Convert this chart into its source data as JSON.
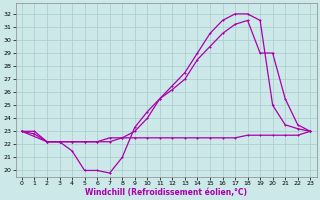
{
  "background_color": "#cce8e8",
  "line_color": "#aa00aa",
  "grid_color": "#aacccc",
  "xlabel": "Windchill (Refroidissement éolien,°C)",
  "ylabel_ticks": [
    20,
    21,
    22,
    23,
    24,
    25,
    26,
    27,
    28,
    29,
    30,
    31,
    32
  ],
  "xlabel_ticks": [
    0,
    1,
    2,
    3,
    4,
    5,
    6,
    7,
    8,
    9,
    10,
    11,
    12,
    13,
    14,
    15,
    16,
    17,
    18,
    19,
    20,
    21,
    22,
    23
  ],
  "ylim": [
    19.5,
    32.8
  ],
  "xlim": [
    -0.5,
    23.5
  ],
  "line1_x": [
    0,
    1,
    2,
    3,
    4,
    5,
    6,
    7,
    8,
    9,
    10,
    11,
    12,
    13,
    14,
    15,
    16,
    17,
    18,
    19,
    20,
    21,
    22,
    23
  ],
  "line1_y": [
    23.0,
    23.0,
    22.2,
    22.2,
    22.2,
    22.2,
    22.2,
    22.2,
    22.5,
    22.5,
    22.5,
    22.5,
    22.5,
    22.5,
    22.5,
    22.5,
    22.5,
    22.5,
    22.7,
    22.7,
    22.7,
    22.7,
    22.7,
    23.0
  ],
  "line2_x": [
    0,
    1,
    2,
    3,
    4,
    5,
    6,
    7,
    8,
    9,
    10,
    11,
    12,
    13,
    14,
    15,
    16,
    17,
    18,
    19,
    20,
    21,
    22,
    23
  ],
  "line2_y": [
    23.0,
    22.8,
    22.2,
    22.2,
    21.5,
    20.0,
    20.0,
    19.8,
    21.0,
    23.3,
    24.5,
    25.5,
    26.5,
    27.5,
    29.0,
    30.5,
    31.5,
    32.0,
    32.0,
    31.5,
    25.0,
    23.5,
    23.2,
    23.0
  ],
  "line3_x": [
    0,
    2,
    3,
    4,
    5,
    6,
    7,
    8,
    9,
    10,
    11,
    12,
    13,
    14,
    15,
    16,
    17,
    18,
    19,
    20,
    21,
    22,
    23
  ],
  "line3_y": [
    23.0,
    22.2,
    22.2,
    22.2,
    22.2,
    22.2,
    22.5,
    22.5,
    23.0,
    24.0,
    25.5,
    26.2,
    27.0,
    28.5,
    29.5,
    30.5,
    31.2,
    31.5,
    29.0,
    29.0,
    25.5,
    23.5,
    23.0
  ]
}
